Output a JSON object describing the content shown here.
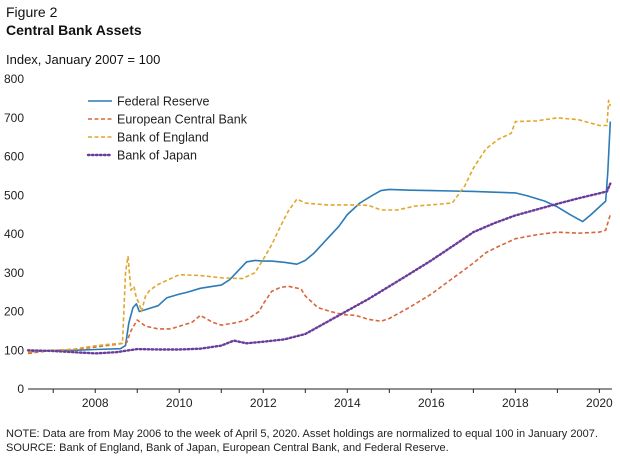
{
  "header": {
    "figure_label": "Figure 2",
    "title": "Central Bank Assets",
    "subtitle": "Index, January 2007 = 100"
  },
  "notes": {
    "note": "NOTE: Data are from May 2006 to the week of April 5, 2020. Asset holdings are normalized to equal 100 in January 2007.",
    "source": "SOURCE: Bank of England, Bank of Japan, European Central Bank, and Federal Reserve."
  },
  "chart_data": {
    "type": "line",
    "title": "Central Bank Assets",
    "subtitle": "Index, January 2007 = 100",
    "xlabel": "",
    "ylabel": "",
    "xlim": [
      2006.4,
      2020.3
    ],
    "ylim": [
      0,
      800
    ],
    "x_ticks": [
      2008,
      2010,
      2012,
      2014,
      2016,
      2018,
      2020
    ],
    "y_ticks": [
      0,
      100,
      200,
      300,
      400,
      500,
      600,
      700,
      800
    ],
    "grid": false,
    "legend_position": "top-left",
    "series": [
      {
        "name": "Federal Reserve",
        "color": "#2b7bb9",
        "style": "solid",
        "points": [
          [
            2006.4,
            96
          ],
          [
            2007.0,
            100
          ],
          [
            2007.5,
            100
          ],
          [
            2008.0,
            102
          ],
          [
            2008.6,
            104
          ],
          [
            2008.72,
            112
          ],
          [
            2008.8,
            170
          ],
          [
            2008.9,
            210
          ],
          [
            2008.98,
            220
          ],
          [
            2009.05,
            200
          ],
          [
            2009.2,
            205
          ],
          [
            2009.35,
            210
          ],
          [
            2009.5,
            215
          ],
          [
            2009.6,
            225
          ],
          [
            2009.7,
            235
          ],
          [
            2009.85,
            240
          ],
          [
            2010.0,
            245
          ],
          [
            2010.2,
            250
          ],
          [
            2010.5,
            260
          ],
          [
            2010.8,
            265
          ],
          [
            2011.0,
            268
          ],
          [
            2011.2,
            282
          ],
          [
            2011.4,
            305
          ],
          [
            2011.6,
            328
          ],
          [
            2011.8,
            332
          ],
          [
            2012.0,
            330
          ],
          [
            2012.2,
            330
          ],
          [
            2012.5,
            327
          ],
          [
            2012.8,
            322
          ],
          [
            2013.0,
            332
          ],
          [
            2013.2,
            350
          ],
          [
            2013.5,
            385
          ],
          [
            2013.8,
            420
          ],
          [
            2014.0,
            450
          ],
          [
            2014.3,
            480
          ],
          [
            2014.6,
            500
          ],
          [
            2014.8,
            512
          ],
          [
            2015.0,
            515
          ],
          [
            2015.5,
            513
          ],
          [
            2016.0,
            512
          ],
          [
            2016.5,
            511
          ],
          [
            2017.0,
            510
          ],
          [
            2017.5,
            508
          ],
          [
            2018.0,
            506
          ],
          [
            2018.3,
            498
          ],
          [
            2018.7,
            485
          ],
          [
            2019.0,
            470
          ],
          [
            2019.3,
            450
          ],
          [
            2019.6,
            432
          ],
          [
            2019.8,
            450
          ],
          [
            2020.0,
            470
          ],
          [
            2020.15,
            485
          ],
          [
            2020.2,
            560
          ],
          [
            2020.26,
            690
          ]
        ]
      },
      {
        "name": "European Central Bank",
        "color": "#d8663b",
        "style": "dashed",
        "points": [
          [
            2006.4,
            92
          ],
          [
            2007.0,
            100
          ],
          [
            2007.5,
            102
          ],
          [
            2008.0,
            108
          ],
          [
            2008.5,
            115
          ],
          [
            2008.75,
            120
          ],
          [
            2008.85,
            150
          ],
          [
            2009.0,
            178
          ],
          [
            2009.2,
            162
          ],
          [
            2009.5,
            155
          ],
          [
            2009.8,
            155
          ],
          [
            2010.0,
            162
          ],
          [
            2010.3,
            172
          ],
          [
            2010.5,
            190
          ],
          [
            2010.8,
            172
          ],
          [
            2011.0,
            165
          ],
          [
            2011.3,
            170
          ],
          [
            2011.6,
            178
          ],
          [
            2011.9,
            200
          ],
          [
            2012.0,
            220
          ],
          [
            2012.2,
            252
          ],
          [
            2012.4,
            262
          ],
          [
            2012.6,
            265
          ],
          [
            2012.9,
            258
          ],
          [
            2013.0,
            240
          ],
          [
            2013.3,
            210
          ],
          [
            2013.6,
            200
          ],
          [
            2013.9,
            192
          ],
          [
            2014.2,
            190
          ],
          [
            2014.5,
            180
          ],
          [
            2014.8,
            175
          ],
          [
            2015.0,
            182
          ],
          [
            2015.5,
            212
          ],
          [
            2016.0,
            245
          ],
          [
            2016.5,
            285
          ],
          [
            2017.0,
            325
          ],
          [
            2017.3,
            352
          ],
          [
            2017.6,
            368
          ],
          [
            2018.0,
            388
          ],
          [
            2018.5,
            398
          ],
          [
            2019.0,
            405
          ],
          [
            2019.5,
            402
          ],
          [
            2020.0,
            405
          ],
          [
            2020.15,
            410
          ],
          [
            2020.26,
            450
          ]
        ]
      },
      {
        "name": "Bank of England",
        "color": "#e1a72c",
        "style": "dashed",
        "points": [
          [
            2006.4,
            96
          ],
          [
            2007.0,
            100
          ],
          [
            2007.5,
            103
          ],
          [
            2007.9,
            110
          ],
          [
            2008.3,
            115
          ],
          [
            2008.65,
            118
          ],
          [
            2008.72,
            300
          ],
          [
            2008.78,
            342
          ],
          [
            2008.85,
            255
          ],
          [
            2008.92,
            265
          ],
          [
            2008.98,
            235
          ],
          [
            2009.05,
            220
          ],
          [
            2009.1,
            200
          ],
          [
            2009.2,
            240
          ],
          [
            2009.3,
            255
          ],
          [
            2009.5,
            270
          ],
          [
            2009.7,
            280
          ],
          [
            2010.0,
            295
          ],
          [
            2010.5,
            293
          ],
          [
            2011.0,
            287
          ],
          [
            2011.5,
            285
          ],
          [
            2011.8,
            300
          ],
          [
            2012.0,
            335
          ],
          [
            2012.2,
            372
          ],
          [
            2012.4,
            418
          ],
          [
            2012.6,
            460
          ],
          [
            2012.8,
            490
          ],
          [
            2013.0,
            480
          ],
          [
            2013.5,
            475
          ],
          [
            2014.0,
            475
          ],
          [
            2014.5,
            474
          ],
          [
            2014.8,
            462
          ],
          [
            2015.2,
            462
          ],
          [
            2015.6,
            472
          ],
          [
            2016.0,
            475
          ],
          [
            2016.5,
            480
          ],
          [
            2016.8,
            525
          ],
          [
            2017.0,
            570
          ],
          [
            2017.3,
            620
          ],
          [
            2017.6,
            645
          ],
          [
            2017.9,
            660
          ],
          [
            2018.0,
            690
          ],
          [
            2018.5,
            692
          ],
          [
            2019.0,
            700
          ],
          [
            2019.5,
            695
          ],
          [
            2020.0,
            680
          ],
          [
            2020.18,
            680
          ],
          [
            2020.22,
            745
          ],
          [
            2020.26,
            730
          ]
        ]
      },
      {
        "name": "Bank of Japan",
        "color": "#6a3d9a",
        "style": "dotted",
        "points": [
          [
            2006.4,
            100
          ],
          [
            2007.0,
            98
          ],
          [
            2007.5,
            95
          ],
          [
            2008.0,
            92
          ],
          [
            2008.5,
            95
          ],
          [
            2008.8,
            100
          ],
          [
            2009.0,
            103
          ],
          [
            2009.5,
            102
          ],
          [
            2010.0,
            102
          ],
          [
            2010.5,
            104
          ],
          [
            2011.0,
            112
          ],
          [
            2011.3,
            125
          ],
          [
            2011.6,
            118
          ],
          [
            2012.0,
            122
          ],
          [
            2012.5,
            128
          ],
          [
            2013.0,
            142
          ],
          [
            2013.5,
            172
          ],
          [
            2014.0,
            202
          ],
          [
            2014.5,
            232
          ],
          [
            2015.0,
            265
          ],
          [
            2015.5,
            298
          ],
          [
            2016.0,
            332
          ],
          [
            2016.5,
            368
          ],
          [
            2017.0,
            405
          ],
          [
            2017.5,
            428
          ],
          [
            2018.0,
            448
          ],
          [
            2018.5,
            463
          ],
          [
            2019.0,
            478
          ],
          [
            2019.5,
            492
          ],
          [
            2020.0,
            505
          ],
          [
            2020.18,
            510
          ],
          [
            2020.26,
            530
          ]
        ]
      }
    ]
  }
}
